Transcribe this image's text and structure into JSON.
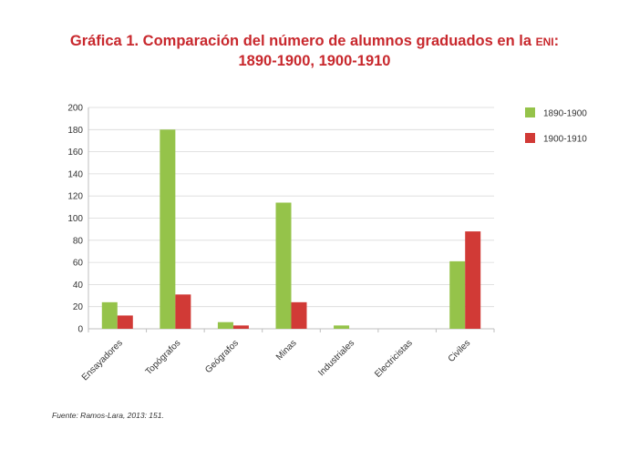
{
  "title_line1_main": "Gráfica 1. Comparación del número de alumnos graduados en la ",
  "title_line1_sc": "eni",
  "title_line1_end": ":",
  "title_line2": "1890-1900, 1900-1910",
  "source": "Fuente: Ramos-Lara, 2013: 151.",
  "colors": {
    "series1": "#95c34a",
    "series2": "#d13a36",
    "title": "#c8282d",
    "grid": "#d9d9d9"
  },
  "chart_data": {
    "type": "bar",
    "categories": [
      "Ensayadores",
      "Topógrafos",
      "Geógrafos",
      "Minas",
      "Industriales",
      "Electricistas",
      "Civiles"
    ],
    "series": [
      {
        "name": "1890-1900",
        "values": [
          24,
          180,
          6,
          114,
          3,
          0,
          61
        ]
      },
      {
        "name": "1900-1910",
        "values": [
          12,
          31,
          3,
          24,
          0,
          0,
          88
        ]
      }
    ],
    "ylim": [
      0,
      200
    ],
    "yticks": [
      "0",
      "20",
      "40",
      "60",
      "80",
      "100",
      "120",
      "140",
      "160",
      "180",
      "200"
    ],
    "grid": true,
    "legend": "right"
  }
}
